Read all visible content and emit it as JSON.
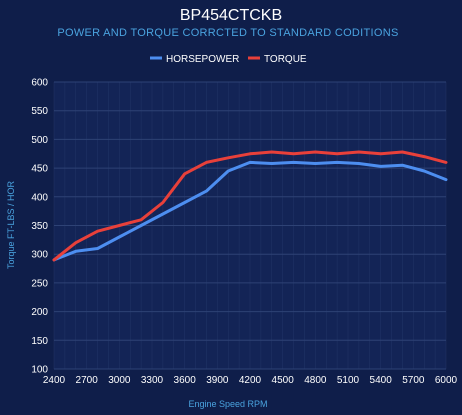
{
  "chart_data": {
    "type": "line",
    "title": "BP454CTCKB",
    "subtitle": "POWER AND TORQUE CORRCTED TO STANDARD CODITIONS",
    "xlabel": "Engine Speed RPM",
    "ylabel": "Torque FT-LBS / HOR",
    "x": [
      2400,
      2600,
      2800,
      3000,
      3200,
      3400,
      3600,
      3800,
      4000,
      4200,
      4400,
      4600,
      4800,
      5000,
      5200,
      5400,
      5600,
      5800,
      6000
    ],
    "xticks": [
      2400,
      2700,
      3000,
      3300,
      3600,
      3900,
      4200,
      4500,
      4800,
      5100,
      5400,
      5700,
      6000
    ],
    "yticks": [
      100,
      150,
      200,
      250,
      300,
      350,
      400,
      450,
      500,
      550,
      600
    ],
    "xlim": [
      2400,
      6000
    ],
    "ylim": [
      100,
      600
    ],
    "grid": true,
    "legend_position": "top",
    "series": [
      {
        "name": "HORSEPOWER",
        "color": "#4d8ef0",
        "values": [
          290,
          305,
          310,
          330,
          350,
          370,
          390,
          410,
          445,
          460,
          458,
          460,
          458,
          460,
          458,
          453,
          455,
          445,
          430
        ]
      },
      {
        "name": "TORQUE",
        "color": "#e8403a",
        "values": [
          290,
          320,
          340,
          350,
          360,
          390,
          440,
          460,
          468,
          475,
          478,
          475,
          478,
          475,
          478,
          475,
          478,
          470,
          460
        ]
      }
    ]
  },
  "style": {
    "background": "#0f1e4a",
    "plot_background": "#132456",
    "grid_color": "#2e4275"
  }
}
